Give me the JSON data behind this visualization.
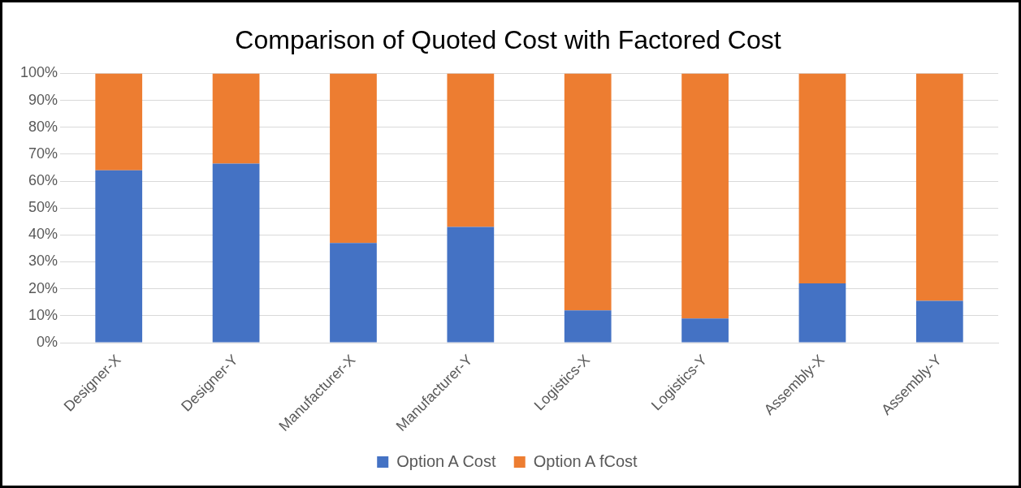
{
  "chart_data": {
    "type": "bar",
    "title": "Comparison of Quoted Cost with Factored Cost",
    "stacked": true,
    "categories": [
      "Designer-X",
      "Designer-Y",
      "Manufacturer-X",
      "Manufacturer-Y",
      "Logistics-X",
      "Logistics-Y",
      "Assembly-X",
      "Assembly-Y"
    ],
    "series": [
      {
        "name": "Option A Cost",
        "color": "#4472c4",
        "values": [
          64,
          66.5,
          37,
          43,
          12,
          9,
          22,
          15.5
        ]
      },
      {
        "name": "Option A fCost",
        "color": "#ed7d31",
        "values": [
          36,
          33.5,
          63,
          57,
          88,
          91,
          78,
          84.5
        ]
      }
    ],
    "ylim": [
      0,
      100
    ],
    "yticks": [
      {
        "value": 0,
        "label": "0%"
      },
      {
        "value": 10,
        "label": "10%"
      },
      {
        "value": 20,
        "label": "20%"
      },
      {
        "value": 30,
        "label": "30%"
      },
      {
        "value": 40,
        "label": "40%"
      },
      {
        "value": 50,
        "label": "50%"
      },
      {
        "value": 60,
        "label": "60%"
      },
      {
        "value": 70,
        "label": "70%"
      },
      {
        "value": 80,
        "label": "80%"
      },
      {
        "value": 90,
        "label": "90%"
      },
      {
        "value": 100,
        "label": "100%"
      }
    ],
    "grid": "y",
    "legend": "bottom"
  }
}
